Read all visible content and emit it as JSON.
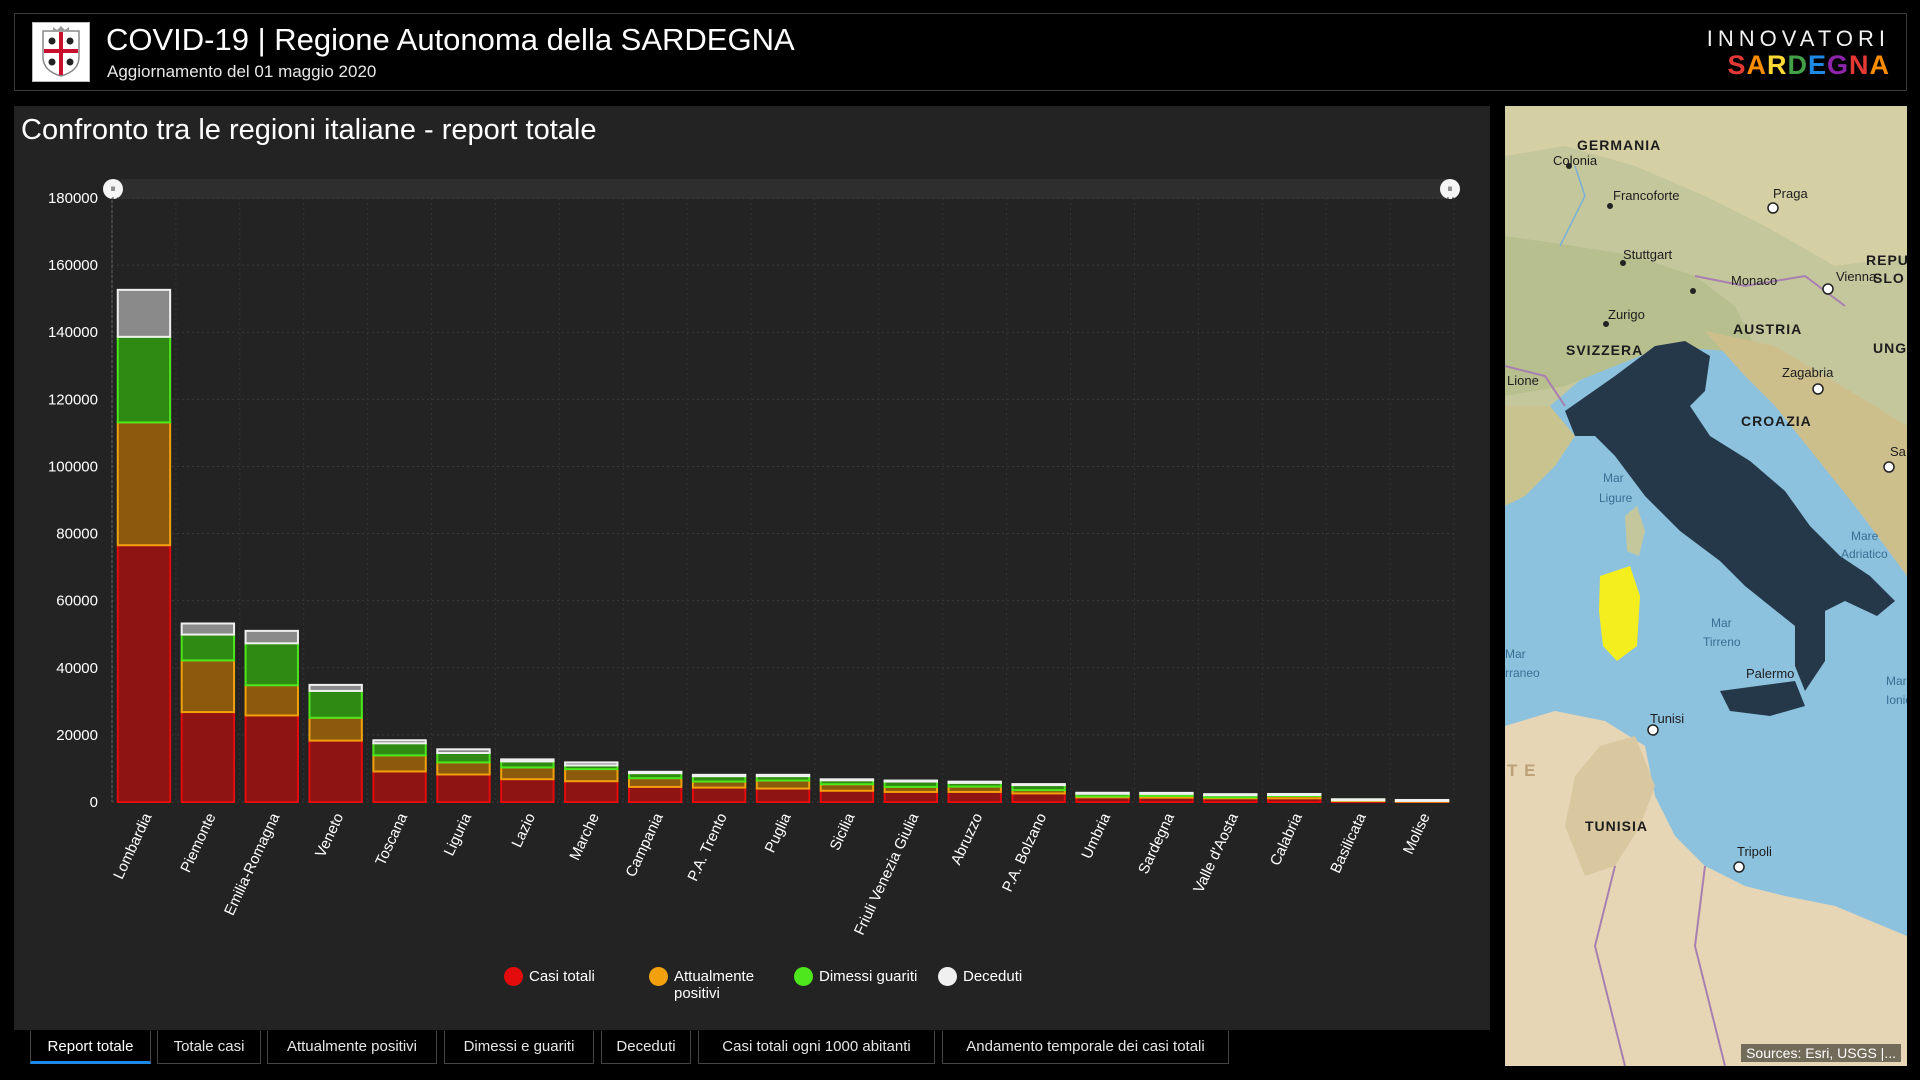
{
  "header": {
    "title": "COVID-19 | Regione Autonoma della SARDEGNA",
    "subtitle": "Aggiornamento del 01 maggio 2020",
    "brand_top": "INNOVATORI",
    "brand_bottom": "SARDEGNA"
  },
  "panel": {
    "title": "Confronto tra le regioni italiane - report totale"
  },
  "chart_data": {
    "type": "bar",
    "stacked": true,
    "categories": [
      "Lombardia",
      "Piemonte",
      "Emilia-Romagna",
      "Veneto",
      "Toscana",
      "Liguria",
      "Lazio",
      "Marche",
      "Campania",
      "P.A. Trento",
      "Puglia",
      "Sicilia",
      "Friuli Venezia Giulia",
      "Abruzzo",
      "P.A. Bolzano",
      "Umbria",
      "Sardegna",
      "Valle d'Aosta",
      "Calabria",
      "Basilicata",
      "Molise"
    ],
    "series": [
      {
        "name": "Casi totali",
        "color": "#e30b0b",
        "values": [
          76528,
          26800,
          25800,
          18300,
          9100,
          8200,
          6800,
          6200,
          4500,
          4300,
          4000,
          3350,
          3000,
          3000,
          2550,
          1380,
          1300,
          1150,
          1100,
          380,
          300
        ]
      },
      {
        "name": "Attualmente positivi",
        "color": "#f2a10c",
        "values": [
          36600,
          15400,
          9000,
          6800,
          4800,
          3600,
          3500,
          3600,
          2600,
          1800,
          2400,
          1950,
          1500,
          1600,
          1000,
          300,
          500,
          250,
          700,
          200,
          100
        ]
      },
      {
        "name": "Dimessi guariti",
        "color": "#4ee61c",
        "values": [
          25500,
          7700,
          12500,
          8000,
          3600,
          2800,
          1800,
          1100,
          1500,
          1600,
          1300,
          1200,
          1600,
          1100,
          1500,
          1000,
          800,
          800,
          500,
          200,
          180
        ]
      },
      {
        "name": "Deceduti",
        "color": "#f0f0f0",
        "values": [
          14000,
          3300,
          3700,
          1800,
          900,
          1100,
          600,
          900,
          400,
          400,
          400,
          260,
          300,
          360,
          290,
          70,
          120,
          140,
          90,
          30,
          25
        ]
      }
    ],
    "y_ticks": [
      "0",
      "20000",
      "40000",
      "60000",
      "80000",
      "100000",
      "120000",
      "140000",
      "160000",
      "180000"
    ],
    "ylim": [
      0,
      180000
    ],
    "grid": true,
    "legend_position": "bottom"
  },
  "legend": {
    "items": [
      {
        "label": "Casi totali",
        "color": "#e30b0b"
      },
      {
        "label": "Attualmente positivi",
        "color": "#f2a10c"
      },
      {
        "label": "Dimessi guariti",
        "color": "#4ee61c"
      },
      {
        "label": "Deceduti",
        "color": "#f0f0f0"
      }
    ],
    "label_0": "Casi totali",
    "label_1": "Attualmente",
    "label_1b": "positivi",
    "label_2": "Dimessi guariti",
    "label_3": "Deceduti"
  },
  "slider": {
    "left_handle": "⏸",
    "right_handle": "⏸"
  },
  "tabs": [
    {
      "label": "Report totale"
    },
    {
      "label": "Totale casi"
    },
    {
      "label": "Attualmente positivi"
    },
    {
      "label": "Dimessi e guariti"
    },
    {
      "label": "Deceduti"
    },
    {
      "label": "Casi totali ogni 1000 abitanti"
    },
    {
      "label": "Andamento temporale dei casi totali"
    }
  ],
  "map": {
    "labels": {
      "germania": "GERMANIA",
      "colonia": "Colonia",
      "francoforte": "Francoforte",
      "praga": "Praga",
      "stuttgart": "Stuttgart",
      "monaco": "Monaco",
      "vienna": "Vienna",
      "zurigo": "Zurigo",
      "austria": "AUSTRIA",
      "svizzera": "SVIZZERA",
      "lione": "Lione",
      "zagabria": "Zagabria",
      "croazia": "CROAZIA",
      "mar_ligure_1": "Mar",
      "mar_ligure_2": "Ligure",
      "mare_adriatico_1": "Mare",
      "mare_adriatico_2": "Adriatico",
      "mar_tirreno_1": "Mar",
      "mar_tirreno_2": "Tirreno",
      "palermo": "Palermo",
      "tunisi": "Tunisi",
      "tunisia": "TUNISIA",
      "tripoli": "Tripoli",
      "repu": "REPU",
      "slo": "SLO",
      "ungh": "UNGH",
      "mar_left": "Mar",
      "rraneo": "rraneo",
      "te": "T E",
      "sa": "Sa",
      "mar_right": "Mar",
      "ionio": "Ionio"
    },
    "attribution": "Sources: Esri, USGS |..."
  },
  "colors": {
    "background": "#000000",
    "panel": "#232323",
    "active_tab": "#1e88e5",
    "sardegna_highlight": "#f5ee1f",
    "italy": "#25384a"
  }
}
